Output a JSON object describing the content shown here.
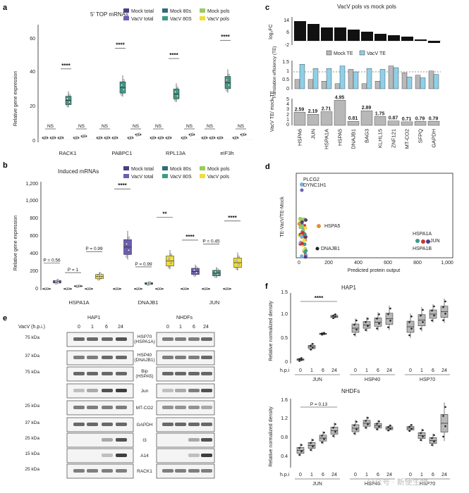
{
  "panels": {
    "a": "a",
    "b": "b",
    "c": "c",
    "d": "d",
    "e": "e",
    "f": "f"
  },
  "legend_groups": [
    "Mock total",
    "VacV total",
    "Mock 80s",
    "VacV 80S",
    "Mock pols",
    "VacV pols"
  ],
  "colors": {
    "mock_total": "#4a3f86",
    "vacv_total": "#6a5fb0",
    "mock_80s": "#2c6e78",
    "vacv_80s": "#3d9a86",
    "mock_pols": "#9bcb5a",
    "vacv_pols": "#f0dc3c",
    "mock_te": "#b8b8b8",
    "vacv_te": "#8fd0e8"
  },
  "panel_a": {
    "title": "5′ TOP mRNAs",
    "ylabel": "Relative gene expression",
    "yticks": [
      "0",
      "20",
      "40",
      "60"
    ],
    "genes": [
      "RACK1",
      "PABPC1",
      "RPL13A",
      "eIF3h"
    ],
    "sig": [
      "NS",
      "****",
      "NS",
      "NS",
      "****",
      "NS",
      "NS",
      "****",
      "NS",
      "NS",
      "****",
      "NS"
    ],
    "chart_data": {
      "type": "box",
      "categories": [
        "RACK1",
        "PABPC1",
        "RPL13A",
        "eIF3h"
      ],
      "ylim": [
        0,
        65
      ],
      "series_medians": {
        "Mock total": [
          1,
          1,
          1,
          1
        ],
        "VacV total": [
          1,
          1,
          1,
          1
        ],
        "Mock 80s": [
          1,
          1,
          1,
          1
        ],
        "VacV 80S": [
          24,
          32,
          28,
          35
        ],
        "Mock pols": [
          1,
          1,
          1,
          1
        ],
        "VacV pols": [
          2,
          3,
          3,
          3
        ]
      }
    }
  },
  "panel_b": {
    "title": "Induced mRNAs",
    "ylabel": "Relative gene expression",
    "yticks": [
      "0",
      "200",
      "400",
      "600",
      "800",
      "1,000",
      "1,200"
    ],
    "genes": [
      "HSPA1A",
      "DNAJB1",
      "JUN"
    ],
    "pvals": [
      "P = 0.56",
      "P = 1",
      "P = 0.99",
      "****",
      "P = 0.99",
      "**",
      "****",
      "P = 0.45",
      "****"
    ],
    "chart_data": {
      "type": "box",
      "categories": [
        "HSPA1A",
        "DNAJB1",
        "JUN"
      ],
      "ylim": [
        0,
        1200
      ],
      "series_medians": {
        "Mock total": [
          0,
          0,
          0
        ],
        "VacV total": [
          80,
          480,
          200
        ],
        "Mock 80s": [
          0,
          0,
          0
        ],
        "VacV 80S": [
          30,
          60,
          180
        ],
        "Mock pols": [
          0,
          0,
          0
        ],
        "VacV pols": [
          140,
          320,
          300
        ]
      }
    }
  },
  "panel_c": {
    "title": "VacV pols vs mock pols",
    "ylabel_top": "log₂FC",
    "yticks_top": [
      "-2",
      "6",
      "14"
    ],
    "ylabel_mid": "Translation efficiency (TE)",
    "yticks_mid": [
      "0",
      "0.5",
      "1",
      "1.5"
    ],
    "legend": [
      "Mock TE",
      "VacV TE"
    ],
    "ylabel_bot": "VacV TE/ mock TE",
    "yticks_bot": [
      "0",
      "1",
      "2",
      "3",
      "4",
      "5"
    ],
    "genes": [
      "HSPA6",
      "JUN",
      "HSPA1A",
      "HSPA5",
      "DNAJB1",
      "BAG3",
      "KLHL15",
      "ZNF121",
      "MT-CO2",
      "SFPQ",
      "GAPDH"
    ],
    "ratio_labels": [
      "2.59",
      "2.19",
      "2.71",
      "4.95",
      "0.81",
      "2.89",
      "1.75",
      "0.87",
      "0.71",
      "0.79",
      "0.79"
    ],
    "chart_data": {
      "type": "bar",
      "categories": [
        "HSPA6",
        "JUN",
        "HSPA1A",
        "HSPA5",
        "DNAJB1",
        "BAG3",
        "KLHL15",
        "ZNF121",
        "MT-CO2",
        "SFPQ",
        "GAPDH"
      ],
      "log2fc": [
        14,
        12,
        9.5,
        9.5,
        8,
        6.5,
        5,
        4,
        3,
        1,
        -1.5
      ],
      "mock_te": [
        0.55,
        0.55,
        0.45,
        0.3,
        1.15,
        0.3,
        0.45,
        1.35,
        0.95,
        0.8,
        1.05
      ],
      "vacv_te": [
        1.45,
        1.2,
        1.2,
        1.35,
        1.0,
        1.2,
        1.15,
        1.25,
        0.7,
        0.65,
        0.85
      ],
      "ratio": [
        2.59,
        2.19,
        2.71,
        4.95,
        0.81,
        2.89,
        1.75,
        0.87,
        0.71,
        0.79,
        0.79
      ]
    }
  },
  "panel_d": {
    "ylabel": "TE-VacV/TE-Mock",
    "xlabel": "Predicted protein output",
    "xticks": [
      "0",
      "200",
      "400",
      "600",
      "800",
      "1,000"
    ],
    "labels": [
      "PLCG2",
      "DYNC1H1",
      "HSPA5",
      "DNAJB1",
      "HSPA1A",
      "JUN",
      "HSPA1B"
    ]
  },
  "panel_e": {
    "col_hap1": "HAP1",
    "col_nhdf": "NHDFs",
    "vacv_label": "VacV (h.p.i.)",
    "timepoints": [
      "0",
      "1",
      "6",
      "24"
    ],
    "rows": [
      {
        "mw": "75 kDa",
        "name": "HSP70",
        "sub": "(HSPA1A)"
      },
      {
        "mw": "37 kDa",
        "name": "HSP40",
        "sub": "(DNAJB1)"
      },
      {
        "mw": "75 kDa",
        "name": "Bip",
        "sub": "(HSPA5)"
      },
      {
        "mw": "",
        "name": "Jun",
        "sub": ""
      },
      {
        "mw": "25 kDa",
        "name": "MT-CO2",
        "sub": ""
      },
      {
        "mw": "37 kDa",
        "name": "GAPDH",
        "sub": ""
      },
      {
        "mw": "25 kDa",
        "name": "I3",
        "sub": ""
      },
      {
        "mw": "15 kDa",
        "name": "A14",
        "sub": ""
      },
      {
        "mw": "25 kDa",
        "name": "RACK1",
        "sub": ""
      }
    ]
  },
  "panel_f": {
    "top_title": "HAP1",
    "bottom_title": "NHDFs",
    "ylabel": "Relative normalized density",
    "yticks_top": [
      "0",
      "0.5",
      "1.0",
      "1.5"
    ],
    "yticks_bot": [
      "0.4",
      "0.8",
      "1.2",
      "1.6"
    ],
    "hpi": "h.p.i",
    "timepoints": [
      "0",
      "1",
      "6",
      "24"
    ],
    "groups": [
      "JUN",
      "HSP40",
      "HSP70"
    ],
    "sig_top": "****",
    "sig_bot": "P = 0.13"
  },
  "watermark": "公众号 · 新使生物"
}
